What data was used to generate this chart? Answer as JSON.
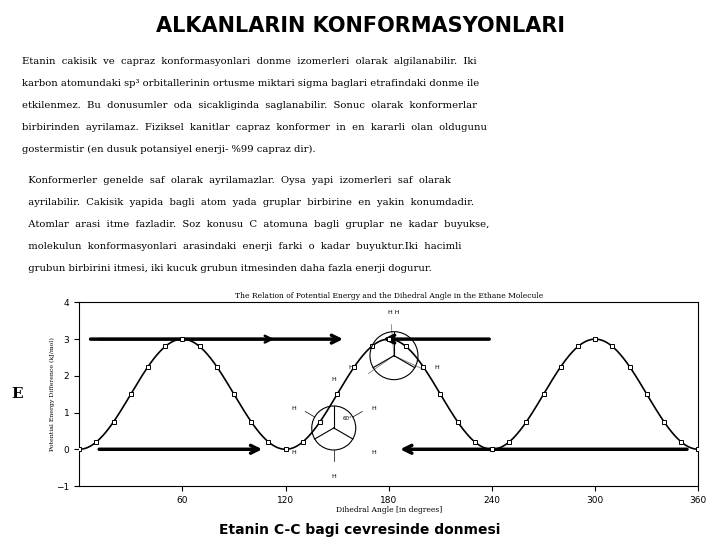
{
  "title": "ALKANLARIN KONFORMASYONLARI",
  "title_bg": "#F4956A",
  "bg_color": "#FFFFFF",
  "graph_title": "The Relation of Potential Energy and the Dihedral Angle in the Ethane Molecule",
  "xlabel": "Dihedral Angle [in degrees]",
  "ylabel": "Potential Energy Difference (kJ/mol)",
  "ylabel_short": "E",
  "footer": "Etanin C-C bagi cevresinde donmesi",
  "ylim": [
    -1,
    4
  ],
  "xlim": [
    0,
    360
  ],
  "xticks": [
    60,
    120,
    180,
    240,
    300,
    360
  ],
  "yticks": [
    -1,
    0,
    1,
    2,
    3,
    4
  ],
  "p1_lines": [
    "Etanin  cakisik  ve  capraz  konformasyonlari  donme  izomerleri  olarak  algilanabilir.  Iki",
    "karbon atomundaki sp³ orbitallerinin ortusme miktari sigma baglari etrafindaki donme ile",
    "etkilenmez.  Bu  donusumler  oda  sicakliginda  saglanabilir.  Sonuc  olarak  konformerlar",
    "birbirinden  ayrilamaz.  Fiziksel  kanitlar  capraz  konformer  in  en  kararli  olan  oldugunu",
    "gostermistir (en dusuk potansiyel enerji- %99 capraz dir)."
  ],
  "p2_lines": [
    "  Konformerler  genelde  saf  olarak  ayrilamazlar.  Oysa  yapi  izomerleri  saf  olarak",
    "  ayrilabilir.  Cakisik  yapida  bagli  atom  yada  gruplar  birbirine  en  yakin  konumdadir.",
    "  Atomlar  arasi  itme  fazladir.  Soz  konusu  C  atomuna  bagli  gruplar  ne  kadar  buyukse,",
    "  molekulun  konformasyonlari  arasindaki  enerji  farki  o  kadar  buyuktur.Iki  hacimli",
    "  grubun birbirini itmesi, iki kucuk grubun itmesinden daha fazla enerji dogurur."
  ]
}
